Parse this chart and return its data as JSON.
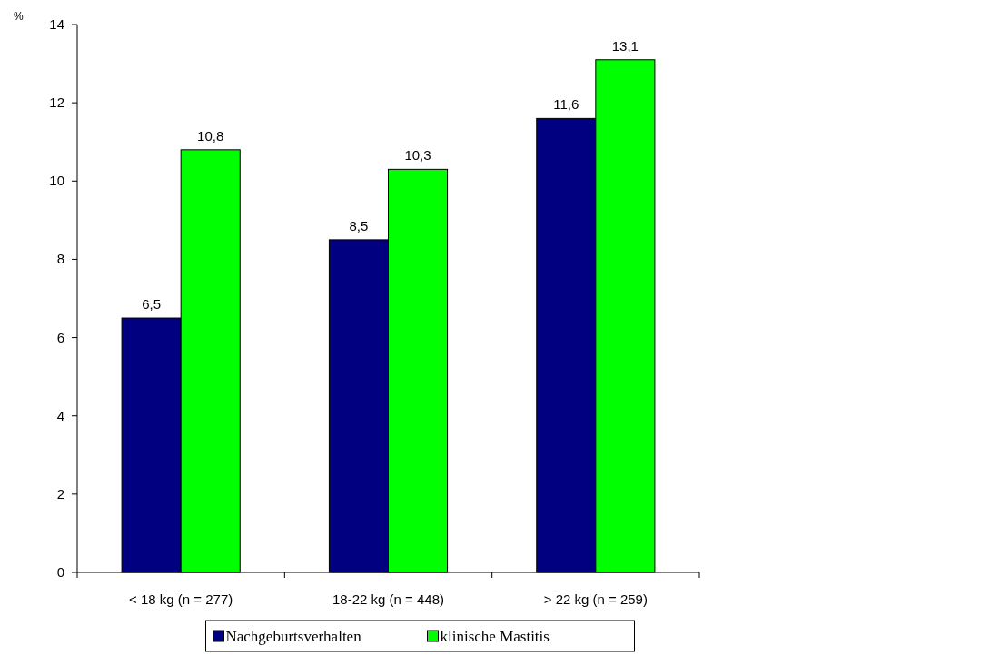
{
  "chart_data": {
    "type": "bar",
    "ylabel": "%",
    "categories": [
      "< 18 kg (n = 277)",
      "18-22 kg (n = 448)",
      "> 22 kg (n = 259)"
    ],
    "series": [
      {
        "name": "Nachgeburtsverhalten",
        "color": "#000080",
        "values": [
          6.5,
          8.5,
          11.6
        ],
        "value_labels": [
          "6,5",
          "8,5",
          "11,6"
        ]
      },
      {
        "name": "klinische Mastitis",
        "color": "#00ff00",
        "values": [
          10.8,
          10.3,
          13.1
        ],
        "value_labels": [
          "10,8",
          "10,3",
          "13,1"
        ]
      }
    ],
    "ylim": [
      0,
      14
    ],
    "yticks": [
      0,
      2,
      4,
      6,
      8,
      10,
      12,
      14
    ],
    "grid": false,
    "legend": "bottom"
  }
}
